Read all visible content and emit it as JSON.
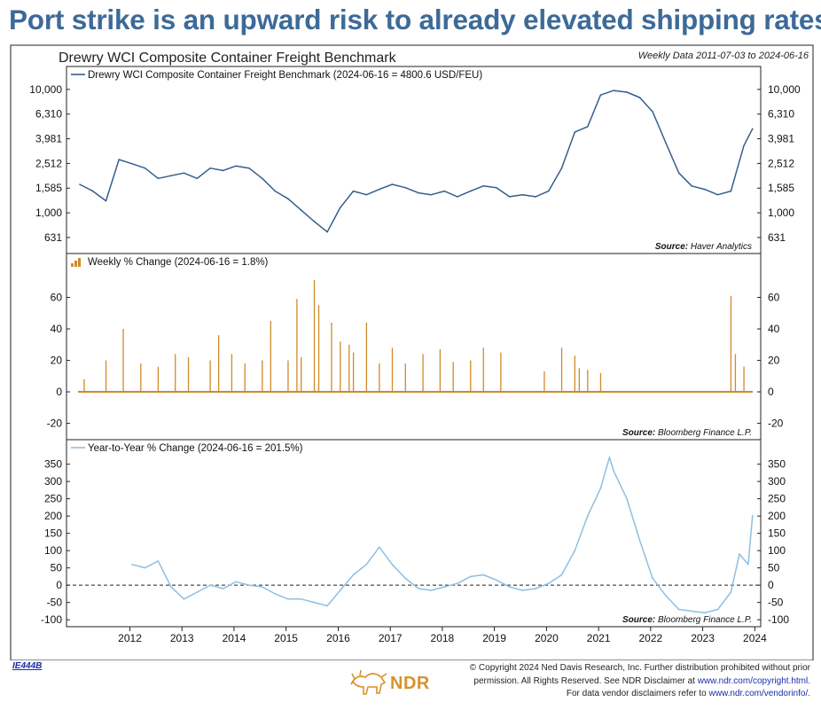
{
  "headline": "Port strike is an upward risk to already elevated shipping rates",
  "chart_data": {
    "type": "line",
    "title": "Drewry WCI Composite Container Freight Benchmark",
    "subtitle": "Weekly Data 2011-07-03 to 2024-06-16",
    "x_axis": {
      "ticks": [
        "2012",
        "2013",
        "2014",
        "2015",
        "2016",
        "2017",
        "2018",
        "2019",
        "2020",
        "2021",
        "2022",
        "2023",
        "2024"
      ],
      "range": [
        "2011-07-03",
        "2024-06-16"
      ]
    },
    "panels": [
      {
        "legend": "Drewry WCI Composite Container Freight Benchmark (2024-06-16 = 4800.6 USD/FEU)",
        "source_label": "Source:",
        "source": "Haver Analytics",
        "scale": "log",
        "ylim": [
          500,
          13000
        ],
        "yticks": [
          631,
          1000,
          1585,
          2512,
          3981,
          6310,
          10000
        ],
        "ytick_labels": [
          "631",
          "1,000",
          "1,585",
          "2,512",
          "3,981",
          "6,310",
          "10,000"
        ],
        "color": "#355e8c",
        "series": {
          "x": [
            "2011-07",
            "2011-10",
            "2012-01",
            "2012-04",
            "2012-07",
            "2012-10",
            "2013-01",
            "2013-04",
            "2013-07",
            "2013-10",
            "2014-01",
            "2014-04",
            "2014-07",
            "2014-10",
            "2015-01",
            "2015-04",
            "2015-07",
            "2015-10",
            "2016-01",
            "2016-04",
            "2016-07",
            "2016-10",
            "2017-01",
            "2017-04",
            "2017-07",
            "2017-10",
            "2018-01",
            "2018-04",
            "2018-07",
            "2018-10",
            "2019-01",
            "2019-04",
            "2019-07",
            "2019-10",
            "2020-01",
            "2020-04",
            "2020-07",
            "2020-10",
            "2021-01",
            "2021-04",
            "2021-07",
            "2021-10",
            "2022-01",
            "2022-04",
            "2022-07",
            "2022-10",
            "2023-01",
            "2023-04",
            "2023-07",
            "2023-10",
            "2024-01",
            "2024-04",
            "2024-06"
          ],
          "values": [
            1700,
            1500,
            1250,
            2700,
            2500,
            2300,
            1900,
            2000,
            2100,
            1900,
            2300,
            2200,
            2400,
            2300,
            1900,
            1500,
            1300,
            1050,
            850,
            700,
            1100,
            1500,
            1400,
            1550,
            1700,
            1600,
            1450,
            1400,
            1500,
            1350,
            1500,
            1650,
            1600,
            1350,
            1400,
            1350,
            1500,
            2300,
            4500,
            5000,
            9000,
            9800,
            9500,
            8600,
            6600,
            3700,
            2100,
            1650,
            1550,
            1400,
            1500,
            3500,
            4800
          ]
        }
      },
      {
        "legend": "Weekly % Change (2024-06-16 = 1.8%)",
        "source_label": "Source:",
        "source": "Bloomberg Finance L.P.",
        "scale": "linear",
        "ylim": [
          -27,
          80
        ],
        "yticks": [
          -20,
          0,
          20,
          40,
          60
        ],
        "type": "bar",
        "color": "#d08a2a",
        "spikes": {
          "x": [
            "2011-08",
            "2012-01",
            "2012-05",
            "2012-09",
            "2013-01",
            "2013-05",
            "2013-08",
            "2014-01",
            "2014-03",
            "2014-06",
            "2014-09",
            "2015-01",
            "2015-03",
            "2015-07",
            "2015-09",
            "2015-10",
            "2016-01",
            "2016-02",
            "2016-05",
            "2016-07",
            "2016-09",
            "2016-10",
            "2017-01",
            "2017-04",
            "2017-07",
            "2017-10",
            "2018-02",
            "2018-06",
            "2018-09",
            "2019-01",
            "2019-04",
            "2019-08",
            "2020-06",
            "2020-10",
            "2021-01",
            "2021-02",
            "2021-04",
            "2021-07",
            "2024-01",
            "2024-02",
            "2024-04"
          ],
          "values": [
            8,
            20,
            40,
            18,
            16,
            24,
            22,
            20,
            36,
            24,
            18,
            20,
            45,
            20,
            59,
            22,
            71,
            55,
            44,
            32,
            30,
            25,
            44,
            18,
            28,
            18,
            24,
            27,
            19,
            20,
            28,
            25,
            13,
            28,
            23,
            15,
            14,
            12,
            61,
            24,
            16
          ]
        },
        "last_value": 1.8
      },
      {
        "legend": "Year-to-Year % Change (2024-06-16 = 201.5%)",
        "source_label": "Source:",
        "source": "Bloomberg Finance L.P.",
        "scale": "linear",
        "ylim": [
          -115,
          385
        ],
        "yticks": [
          -100,
          -50,
          0,
          50,
          100,
          150,
          200,
          250,
          300,
          350
        ],
        "reference_line": 0,
        "color": "#8ebfe2",
        "series": {
          "x": [
            "2012-07",
            "2012-10",
            "2013-01",
            "2013-04",
            "2013-07",
            "2013-10",
            "2014-01",
            "2014-04",
            "2014-07",
            "2014-10",
            "2015-01",
            "2015-04",
            "2015-07",
            "2015-10",
            "2016-01",
            "2016-04",
            "2016-07",
            "2016-10",
            "2017-01",
            "2017-04",
            "2017-07",
            "2017-10",
            "2018-01",
            "2018-04",
            "2018-07",
            "2018-10",
            "2019-01",
            "2019-04",
            "2019-07",
            "2019-10",
            "2020-01",
            "2020-04",
            "2020-07",
            "2020-10",
            "2021-01",
            "2021-04",
            "2021-07",
            "2021-09",
            "2021-10",
            "2022-01",
            "2022-04",
            "2022-07",
            "2022-10",
            "2023-01",
            "2023-04",
            "2023-07",
            "2023-10",
            "2024-01",
            "2024-03",
            "2024-05",
            "2024-06"
          ],
          "values": [
            60,
            50,
            70,
            -5,
            -40,
            -20,
            0,
            -10,
            10,
            0,
            -5,
            -25,
            -40,
            -40,
            -50,
            -60,
            -15,
            30,
            60,
            110,
            60,
            20,
            -10,
            -15,
            -5,
            5,
            25,
            30,
            15,
            -5,
            -15,
            -10,
            5,
            30,
            100,
            200,
            280,
            370,
            330,
            250,
            130,
            20,
            -30,
            -70,
            -75,
            -80,
            -70,
            -20,
            90,
            60,
            201.5
          ]
        }
      }
    ]
  },
  "footer": {
    "chart_id": "IE444B",
    "logo_text": "NDR",
    "copyright_line1": "© Copyright 2024 Ned Davis Research, Inc. Further distribution prohibited without prior",
    "copyright_line2_prefix": "permission. All Rights Reserved. See NDR Disclaimer at",
    "copyright_link1": "www.ndr.com/copyright.html.",
    "copyright_line3_prefix": "For data vendor disclaimers refer to",
    "copyright_link2": "www.ndr.com/vendorinfo/."
  }
}
